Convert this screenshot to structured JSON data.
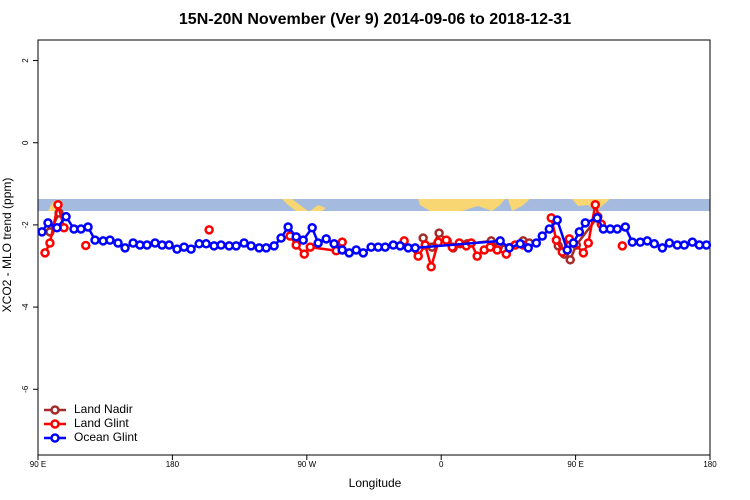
{
  "chart_data": {
    "type": "line",
    "title": "15N-20N November (Ver 9)   2014-09-06 to 2018-12-31",
    "x_label": "Longitude",
    "y_label": "XCO2 - MLO trend (ppm)",
    "xlim": [
      90,
      540
    ],
    "xticks": [
      {
        "value": 90,
        "label": "90 E"
      },
      {
        "value": 180,
        "label": "180"
      },
      {
        "value": 270,
        "label": "90 W"
      },
      {
        "value": 360,
        "label": "0"
      },
      {
        "value": 450,
        "label": "90 E"
      },
      {
        "value": 540,
        "label": "180"
      }
    ],
    "ylim": [
      -7.6,
      2.5
    ],
    "yticks": [
      2,
      0,
      -2,
      -4,
      -6
    ],
    "legend": "bottom-left",
    "series": [
      {
        "name": "Land Nadir",
        "color": "#a52a2a",
        "x": [
          98.0,
          104.1,
          null,
          347.9,
          353.9,
          358.6,
          364.0,
          368.0,
          372.7,
          377.4,
          393.5,
          398.2,
          414.9,
          418.9,
          null,
          438.4,
          442.4,
          446.4,
          450.5,
          464.9
        ],
        "values": [
          -2.17,
          -1.71,
          null,
          -2.32,
          -2.54,
          -2.2,
          -2.39,
          -2.56,
          -2.46,
          -2.46,
          -2.39,
          -2.54,
          -2.39,
          -2.44,
          null,
          -2.51,
          -2.71,
          -2.85,
          -2.49,
          -1.8
        ]
      },
      {
        "name": "Land Glint",
        "color": "#ff0000",
        "x": [
          94.7,
          98.0,
          103.4,
          107.4,
          null,
          122.0,
          null,
          204.6,
          null,
          258.8,
          262.9,
          268.3,
          272.3,
          289.7,
          293.7,
          null,
          335.2,
          344.6,
          349.3,
          353.3,
          358.0,
          363.4,
          367.4,
          372.1,
          376.8,
          380.1,
          384.1,
          388.8,
          392.8,
          397.5,
          403.6,
          409.6,
          414.9,
          null,
          433.7,
          437.1,
          441.1,
          445.8,
          455.2,
          458.5,
          463.2,
          467.2,
          null,
          481.3
        ],
        "values": [
          -2.68,
          -2.44,
          -1.51,
          -2.07,
          null,
          -2.5,
          null,
          -2.12,
          null,
          -2.27,
          -2.49,
          -2.71,
          -2.54,
          -2.63,
          -2.42,
          null,
          -2.39,
          -2.76,
          -2.49,
          -3.02,
          -2.42,
          -2.37,
          -2.54,
          -2.44,
          -2.51,
          -2.44,
          -2.76,
          -2.61,
          -2.54,
          -2.61,
          -2.71,
          -2.49,
          -2.49,
          null,
          -1.83,
          -2.37,
          -2.66,
          -2.34,
          -2.68,
          -2.44,
          -1.51,
          -1.98,
          null,
          -2.51
        ]
      },
      {
        "name": "Ocean Glint",
        "color": "#0000ff",
        "x": [
          92.7,
          96.7,
          102.7,
          108.8,
          114.1,
          118.8,
          123.5,
          128.2,
          133.6,
          138.2,
          143.6,
          148.3,
          153.7,
          158.3,
          163.0,
          168.4,
          173.1,
          177.8,
          183.1,
          187.8,
          192.5,
          197.9,
          202.6,
          207.9,
          212.6,
          218.0,
          222.7,
          228.0,
          232.7,
          238.1,
          242.8,
          248.1,
          252.8,
          257.5,
          262.9,
          267.6,
          273.6,
          277.6,
          283.0,
          288.3,
          293.7,
          298.4,
          303.1,
          307.8,
          313.1,
          317.8,
          322.5,
          327.9,
          332.5,
          337.9,
          342.6,
          399.5,
          405.6,
          412.9,
          418.3,
          423.7,
          427.7,
          432.4,
          437.7,
          444.4,
          448.5,
          452.5,
          456.5,
          464.5,
          468.6,
          473.2,
          477.9,
          483.3,
          488.0,
          493.3,
          498.0,
          502.7,
          508.1,
          512.8,
          518.1,
          522.8,
          528.2,
          532.9,
          537.6
        ],
        "values": [
          -2.17,
          -1.95,
          -2.07,
          -1.8,
          -2.1,
          -2.1,
          -2.05,
          -2.37,
          -2.39,
          -2.37,
          -2.44,
          -2.56,
          -2.44,
          -2.49,
          -2.49,
          -2.44,
          -2.49,
          -2.49,
          -2.59,
          -2.54,
          -2.59,
          -2.46,
          -2.46,
          -2.51,
          -2.49,
          -2.51,
          -2.51,
          -2.44,
          -2.51,
          -2.56,
          -2.56,
          -2.51,
          -2.32,
          -2.05,
          -2.29,
          -2.37,
          -2.07,
          -2.44,
          -2.34,
          -2.46,
          -2.61,
          -2.68,
          -2.61,
          -2.68,
          -2.54,
          -2.54,
          -2.54,
          -2.49,
          -2.51,
          -2.56,
          -2.56,
          -2.39,
          -2.56,
          -2.46,
          -2.56,
          -2.44,
          -2.27,
          -2.1,
          -1.88,
          -2.61,
          -2.44,
          -2.17,
          -1.95,
          -1.83,
          -2.1,
          -2.1,
          -2.1,
          -2.05,
          -2.42,
          -2.42,
          -2.39,
          -2.46,
          -2.56,
          -2.44,
          -2.49,
          -2.49,
          -2.42,
          -2.49,
          -2.49
        ]
      }
    ]
  }
}
